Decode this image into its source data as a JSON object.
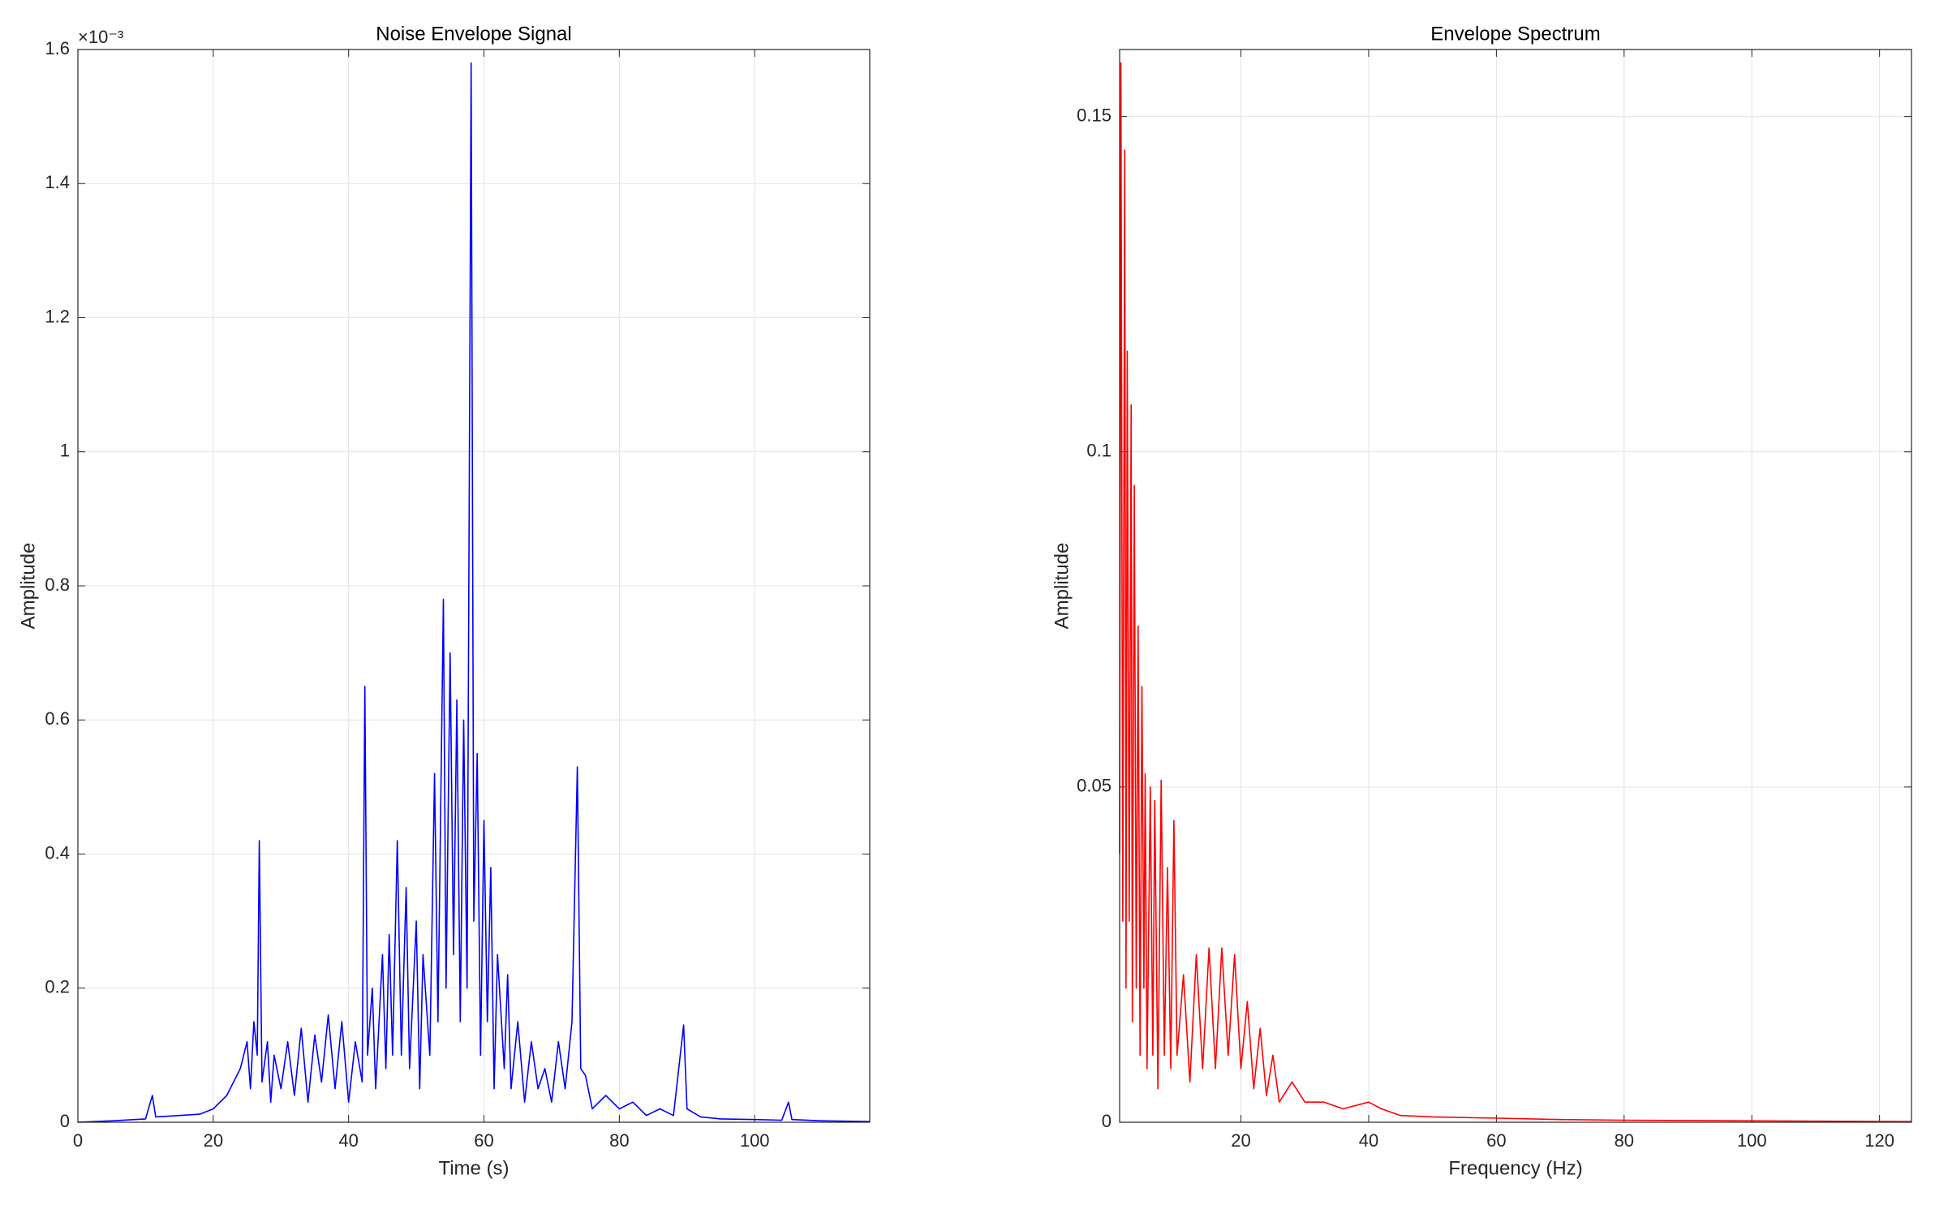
{
  "chart_data": [
    {
      "type": "line",
      "title": "Noise Envelope Signal",
      "xlabel": "Time (s)",
      "ylabel": "Amplitude",
      "y_multiplier": "×10⁻³",
      "color": "#0000ff",
      "grid": true,
      "xlim": [
        0,
        117
      ],
      "xticks": [
        0,
        20,
        40,
        60,
        80,
        100
      ],
      "ylim": [
        0,
        1.6
      ],
      "yticks": [
        0,
        0.2,
        0.4,
        0.6,
        0.8,
        1,
        1.2,
        1.4,
        1.6
      ],
      "x": [
        0,
        5,
        10,
        11,
        11.5,
        15,
        18,
        20,
        22,
        24,
        25,
        25.5,
        26,
        26.5,
        26.8,
        27.2,
        28,
        28.5,
        29,
        30,
        31,
        32,
        33,
        34,
        35,
        36,
        37,
        38,
        39,
        40,
        41,
        42,
        42.4,
        42.8,
        43.5,
        44,
        45,
        45.5,
        46,
        46.5,
        47.2,
        47.8,
        48.5,
        49,
        50,
        50.5,
        51,
        52,
        52.7,
        53.2,
        54,
        54.4,
        55,
        55.5,
        56,
        56.5,
        57,
        57.5,
        58.1,
        58.5,
        59,
        59.5,
        60,
        60.5,
        61,
        61.5,
        62,
        63,
        63.5,
        64,
        65,
        66,
        67,
        68,
        69,
        70,
        71,
        72,
        73,
        73.8,
        74.3,
        75,
        76,
        78,
        80,
        82,
        84,
        86,
        88,
        89.5,
        90,
        92,
        95,
        100,
        104,
        105,
        105.5,
        110,
        117
      ],
      "values": [
        0,
        0.002,
        0.005,
        0.04,
        0.008,
        0.01,
        0.012,
        0.02,
        0.04,
        0.08,
        0.12,
        0.05,
        0.15,
        0.1,
        0.42,
        0.06,
        0.12,
        0.03,
        0.1,
        0.05,
        0.12,
        0.04,
        0.14,
        0.03,
        0.13,
        0.06,
        0.16,
        0.05,
        0.15,
        0.03,
        0.12,
        0.06,
        0.65,
        0.1,
        0.2,
        0.05,
        0.25,
        0.08,
        0.28,
        0.1,
        0.42,
        0.1,
        0.35,
        0.08,
        0.3,
        0.05,
        0.25,
        0.1,
        0.52,
        0.15,
        0.78,
        0.2,
        0.7,
        0.25,
        0.63,
        0.15,
        0.6,
        0.2,
        1.58,
        0.3,
        0.55,
        0.1,
        0.45,
        0.15,
        0.38,
        0.05,
        0.25,
        0.08,
        0.22,
        0.05,
        0.15,
        0.03,
        0.12,
        0.05,
        0.08,
        0.03,
        0.12,
        0.05,
        0.15,
        0.53,
        0.08,
        0.07,
        0.02,
        0.04,
        0.02,
        0.03,
        0.01,
        0.02,
        0.01,
        0.145,
        0.02,
        0.008,
        0.005,
        0.004,
        0.003,
        0.03,
        0.004,
        0.002,
        0.001
      ]
    },
    {
      "type": "line",
      "title": "Envelope Spectrum",
      "xlabel": "Frequency (Hz)",
      "ylabel": "Amplitude",
      "color": "#ff0000",
      "grid": true,
      "xlim": [
        1,
        125
      ],
      "xticks": [
        20,
        40,
        60,
        80,
        100,
        120
      ],
      "ylim": [
        0,
        0.16
      ],
      "yticks": [
        0,
        0.05,
        0.1,
        0.15
      ],
      "x": [
        1,
        1.2,
        1.5,
        1.8,
        2,
        2.2,
        2.5,
        2.8,
        3,
        3.3,
        3.6,
        3.9,
        4.2,
        4.5,
        4.8,
        5,
        5.3,
        5.8,
        6.2,
        6.5,
        7,
        7.5,
        8,
        8.5,
        9,
        9.5,
        10,
        11,
        12,
        13,
        14,
        15,
        16,
        17,
        18,
        19,
        20,
        21,
        22,
        23,
        24,
        25,
        26,
        28,
        30,
        33,
        36,
        40,
        42,
        45,
        50,
        60,
        70,
        80,
        100,
        125
      ],
      "values": [
        0.04,
        0.158,
        0.03,
        0.145,
        0.02,
        0.115,
        0.03,
        0.107,
        0.015,
        0.095,
        0.02,
        0.074,
        0.01,
        0.065,
        0.02,
        0.052,
        0.008,
        0.05,
        0.01,
        0.048,
        0.005,
        0.051,
        0.01,
        0.038,
        0.008,
        0.045,
        0.01,
        0.022,
        0.006,
        0.025,
        0.008,
        0.026,
        0.008,
        0.026,
        0.01,
        0.025,
        0.008,
        0.018,
        0.005,
        0.014,
        0.004,
        0.01,
        0.003,
        0.006,
        0.003,
        0.003,
        0.002,
        0.003,
        0.002,
        0.001,
        0.0008,
        0.0006,
        0.0004,
        0.0003,
        0.0002,
        0.0001
      ]
    }
  ]
}
